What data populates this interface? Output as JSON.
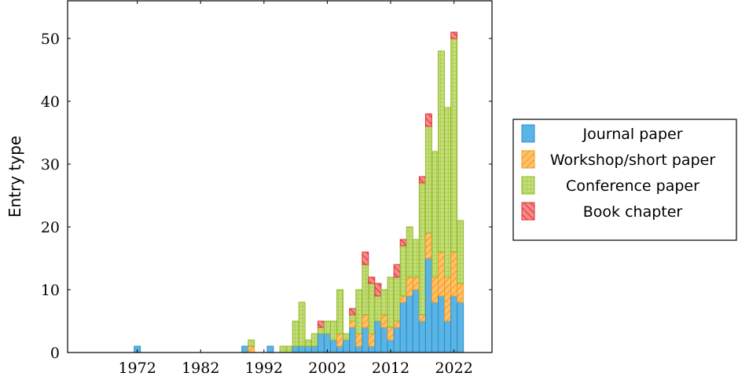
{
  "colors": {
    "journal": "#5ab4e5",
    "journal_stroke": "#2f8fc9",
    "workshop": "#ffc16a",
    "workshop_stroke": "#f39a1f",
    "conference": "#c4dc7a",
    "conference_stroke": "#8fba22",
    "book": "#f48a8a",
    "book_stroke": "#e03131"
  },
  "chart_data": {
    "type": "bar",
    "stacked": true,
    "ylabel": "Entry type",
    "xlabel": "",
    "title": "",
    "xlim": [
      1961,
      2028
    ],
    "ylim": [
      0,
      56
    ],
    "x_ticks": [
      1972,
      1982,
      1992,
      2002,
      2012,
      2022
    ],
    "y_ticks": [
      0,
      10,
      20,
      30,
      40,
      50
    ],
    "legend_position": "right",
    "x": [
      1972,
      1989,
      1990,
      1993,
      1995,
      1996,
      1997,
      1998,
      1999,
      2000,
      2001,
      2002,
      2003,
      2004,
      2005,
      2006,
      2007,
      2008,
      2009,
      2010,
      2011,
      2012,
      2013,
      2014,
      2015,
      2016,
      2017,
      2018,
      2019,
      2020,
      2021,
      2022,
      2023
    ],
    "series": [
      {
        "name": "Journal paper",
        "key": "journal",
        "values": [
          1,
          1,
          0,
          1,
          0,
          0,
          1,
          1,
          1,
          1,
          3,
          3,
          2,
          1,
          2,
          4,
          1,
          4,
          1,
          5,
          4,
          2,
          4,
          8,
          9,
          10,
          5,
          15,
          8,
          9,
          5,
          9,
          8
        ]
      },
      {
        "name": "Workshop/short paper",
        "key": "workshop",
        "values": [
          0,
          0,
          1,
          0,
          0,
          0,
          0,
          0,
          0,
          0,
          0,
          0,
          0,
          2,
          0,
          1,
          2,
          2,
          2,
          0,
          2,
          2,
          1,
          1,
          3,
          2,
          1,
          4,
          4,
          7,
          7,
          7,
          3
        ]
      },
      {
        "name": "Conference paper",
        "key": "conference",
        "values": [
          0,
          0,
          1,
          0,
          1,
          1,
          4,
          7,
          1,
          2,
          1,
          2,
          3,
          7,
          1,
          1,
          7,
          8,
          8,
          4,
          4,
          8,
          7,
          8,
          8,
          6,
          21,
          17,
          20,
          32,
          27,
          34,
          10
        ]
      },
      {
        "name": "Book chapter",
        "key": "book",
        "values": [
          0,
          0,
          0,
          0,
          0,
          0,
          0,
          0,
          0,
          0,
          1,
          0,
          0,
          0,
          0,
          1,
          0,
          2,
          1,
          2,
          0,
          0,
          2,
          1,
          0,
          0,
          1,
          2,
          0,
          0,
          0,
          1,
          0
        ]
      }
    ]
  }
}
